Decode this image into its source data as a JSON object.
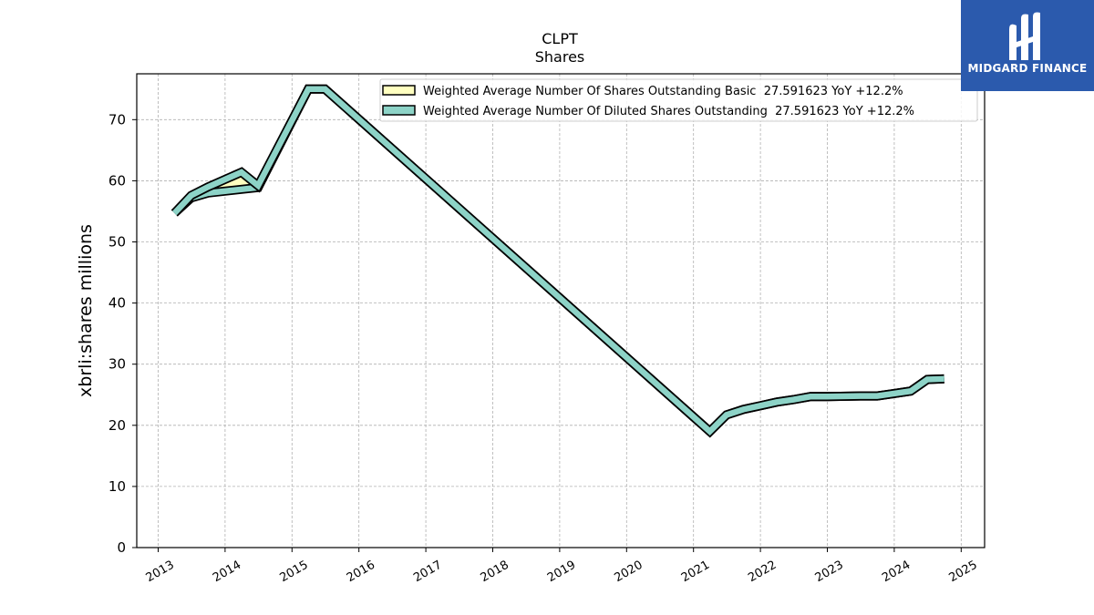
{
  "chart_data": {
    "type": "area",
    "title": "CLPT",
    "subtitle": "Shares",
    "ylabel": "xbrli:shares millions",
    "xlabel": "",
    "ylim": [
      0,
      77.5
    ],
    "xlim": [
      2012.68,
      2025.35
    ],
    "yticks": [
      0,
      10,
      20,
      30,
      40,
      50,
      60,
      70
    ],
    "xticks": [
      "2013",
      "2014",
      "2015",
      "2016",
      "2017",
      "2018",
      "2019",
      "2020",
      "2021",
      "2022",
      "2023",
      "2024",
      "2025"
    ],
    "grid": true,
    "legend_position": "top-right",
    "series": [
      {
        "name": "Weighted Average Number Of Shares Outstanding Basic  27.591623 YoY +12.2%",
        "color": "#ffffc0",
        "x": [
          "2013-03-31",
          "2013-06-30",
          "2013-09-30",
          "2014-03-31",
          "2014-06-30",
          "2015-03-31",
          "2015-06-30",
          "2021-03-31",
          "2021-06-30",
          "2021-09-30",
          "2021-12-31",
          "2022-03-31",
          "2022-06-30",
          "2022-09-30",
          "2022-12-31",
          "2023-06-30",
          "2023-09-30",
          "2023-12-31",
          "2024-03-31",
          "2024-06-30",
          "2024-09-30"
        ],
        "values": [
          54.7,
          57.2,
          58.0,
          58.6,
          58.9,
          75.0,
          75.0,
          19.0,
          21.7,
          22.6,
          23.2,
          23.8,
          24.2,
          24.7,
          24.7,
          24.8,
          24.8,
          25.2,
          25.6,
          27.5,
          27.6
        ]
      },
      {
        "name": "Weighted Average Number Of Diluted Shares Outstanding  27.591623 YoY +12.2%",
        "color": "#8dd3c7",
        "x": [
          "2013-03-31",
          "2013-06-30",
          "2013-09-30",
          "2014-03-31",
          "2014-06-30",
          "2015-03-31",
          "2015-06-30",
          "2021-03-31",
          "2021-06-30",
          "2021-09-30",
          "2021-12-31",
          "2022-03-31",
          "2022-06-30",
          "2022-09-30",
          "2022-12-31",
          "2023-06-30",
          "2023-09-30",
          "2023-12-31",
          "2024-03-31",
          "2024-06-30",
          "2024-09-30"
        ],
        "values": [
          54.7,
          57.6,
          59.0,
          61.4,
          59.2,
          75.0,
          75.0,
          19.0,
          21.7,
          22.6,
          23.2,
          23.8,
          24.2,
          24.7,
          24.7,
          24.8,
          24.8,
          25.2,
          25.6,
          27.5,
          27.6
        ]
      }
    ]
  },
  "logo": {
    "text": "MIDGARD FINANCE"
  }
}
